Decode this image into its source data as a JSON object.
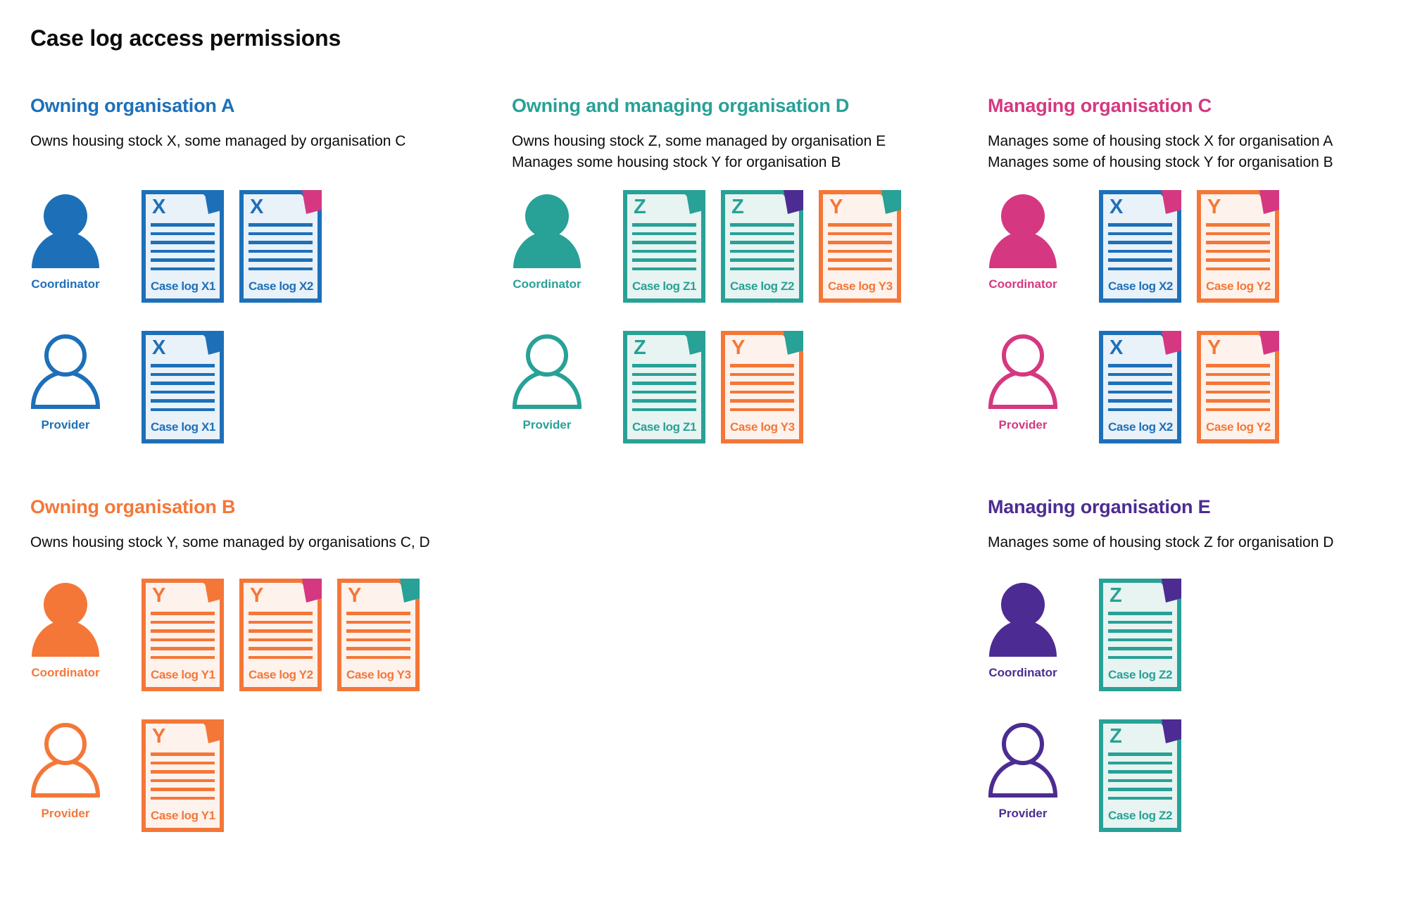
{
  "page": {
    "title": "Case log access permissions"
  },
  "colors": {
    "blue": "#1d70b8",
    "teal": "#28a197",
    "pink": "#d53880",
    "orange": "#f47738",
    "purple": "#4c2c92",
    "blue_light": "#e9f1f9",
    "teal_light": "#e7f4f1",
    "orange_light": "#fdf2ec",
    "text": "#0b0c0c",
    "background": "#ffffff"
  },
  "sections": [
    {
      "id": "owning-organisation-a",
      "heading": "Owning organisation A",
      "color": "blue",
      "description": [
        "Owns housing stock X, some managed by organisation C"
      ],
      "column": 0,
      "band": 0,
      "rows": [
        {
          "role": "Coordinator",
          "person_style": "filled",
          "docs": [
            {
              "letter": "X",
              "label": "Case log X1",
              "doc_color": "blue",
              "fold_color": "blue"
            },
            {
              "letter": "X",
              "label": "Case log X2",
              "doc_color": "blue",
              "fold_color": "pink"
            }
          ]
        },
        {
          "role": "Provider",
          "person_style": "outline",
          "docs": [
            {
              "letter": "X",
              "label": "Case log X1",
              "doc_color": "blue",
              "fold_color": "blue"
            }
          ]
        }
      ]
    },
    {
      "id": "owning-and-managing-organisation-d",
      "heading": "Owning and managing organisation D",
      "color": "teal",
      "description": [
        "Owns housing stock Z, some managed by organisation E",
        "Manages some housing stock Y for organisation B"
      ],
      "column": 1,
      "band": 0,
      "rows": [
        {
          "role": "Coordinator",
          "person_style": "filled",
          "docs": [
            {
              "letter": "Z",
              "label": "Case log Z1",
              "doc_color": "teal",
              "fold_color": "teal"
            },
            {
              "letter": "Z",
              "label": "Case log Z2",
              "doc_color": "teal",
              "fold_color": "purple"
            },
            {
              "letter": "Y",
              "label": "Case log Y3",
              "doc_color": "orange",
              "fold_color": "teal"
            }
          ]
        },
        {
          "role": "Provider",
          "person_style": "outline",
          "docs": [
            {
              "letter": "Z",
              "label": "Case log Z1",
              "doc_color": "teal",
              "fold_color": "teal"
            },
            {
              "letter": "Y",
              "label": "Case log Y3",
              "doc_color": "orange",
              "fold_color": "teal"
            }
          ]
        }
      ]
    },
    {
      "id": "managing-organisation-c",
      "heading": "Managing organisation C",
      "color": "pink",
      "description": [
        "Manages some of housing stock X for organisation A",
        "Manages some of housing stock Y for organisation B"
      ],
      "column": 2,
      "band": 0,
      "rows": [
        {
          "role": "Coordinator",
          "person_style": "filled",
          "docs": [
            {
              "letter": "X",
              "label": "Case log X2",
              "doc_color": "blue",
              "fold_color": "pink"
            },
            {
              "letter": "Y",
              "label": "Case log Y2",
              "doc_color": "orange",
              "fold_color": "pink"
            }
          ]
        },
        {
          "role": "Provider",
          "person_style": "outline",
          "docs": [
            {
              "letter": "X",
              "label": "Case log X2",
              "doc_color": "blue",
              "fold_color": "pink"
            },
            {
              "letter": "Y",
              "label": "Case log Y2",
              "doc_color": "orange",
              "fold_color": "pink"
            }
          ]
        }
      ]
    },
    {
      "id": "owning-organisation-b",
      "heading": "Owning organisation B",
      "color": "orange",
      "description": [
        "Owns housing stock Y, some managed by organisations C, D"
      ],
      "column": 0,
      "band": 1,
      "rows": [
        {
          "role": "Coordinator",
          "person_style": "filled",
          "docs": [
            {
              "letter": "Y",
              "label": "Case log Y1",
              "doc_color": "orange",
              "fold_color": "orange"
            },
            {
              "letter": "Y",
              "label": "Case log Y2",
              "doc_color": "orange",
              "fold_color": "pink"
            },
            {
              "letter": "Y",
              "label": "Case log Y3",
              "doc_color": "orange",
              "fold_color": "teal"
            }
          ]
        },
        {
          "role": "Provider",
          "person_style": "outline",
          "docs": [
            {
              "letter": "Y",
              "label": "Case log Y1",
              "doc_color": "orange",
              "fold_color": "orange"
            }
          ]
        }
      ]
    },
    {
      "id": "managing-organisation-e",
      "heading": "Managing organisation E",
      "color": "purple",
      "description": [
        "Manages some of housing stock Z for organisation D"
      ],
      "column": 2,
      "band": 1,
      "rows": [
        {
          "role": "Coordinator",
          "person_style": "filled",
          "docs": [
            {
              "letter": "Z",
              "label": "Case log Z2",
              "doc_color": "teal",
              "fold_color": "purple"
            }
          ]
        },
        {
          "role": "Provider",
          "person_style": "outline",
          "docs": [
            {
              "letter": "Z",
              "label": "Case log Z2",
              "doc_color": "teal",
              "fold_color": "purple"
            }
          ]
        }
      ]
    }
  ]
}
